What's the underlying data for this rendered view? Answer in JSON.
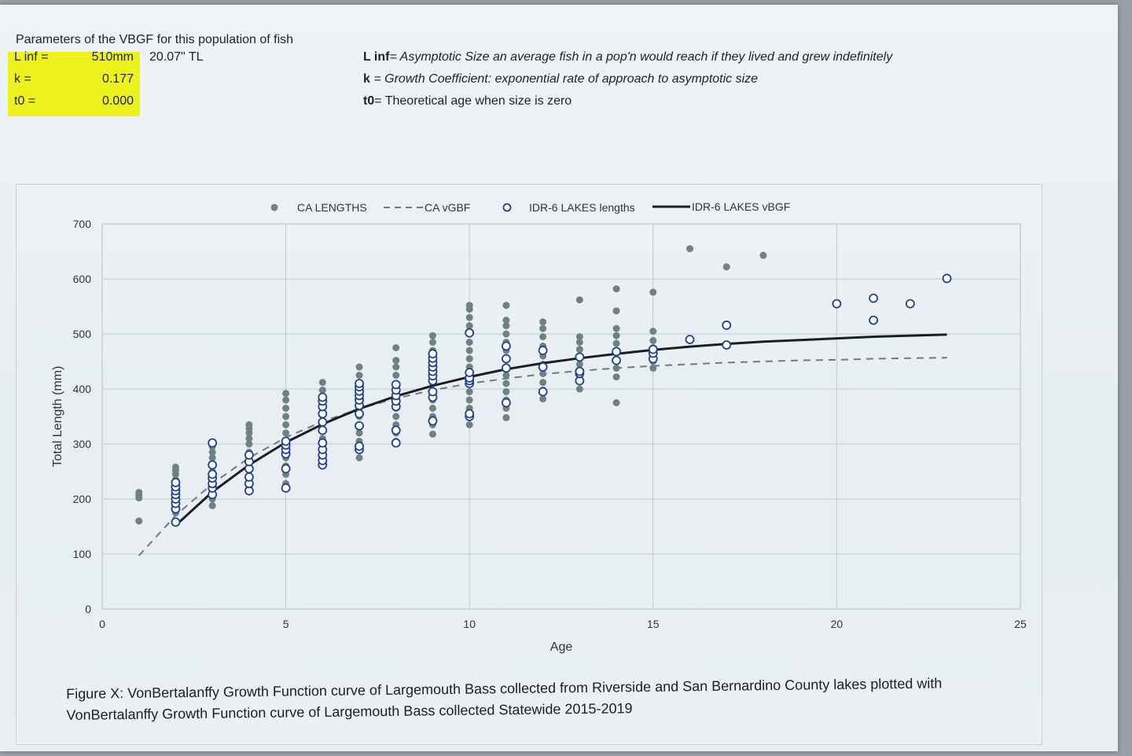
{
  "params": {
    "title": "Parameters of the VBGF for this population of fish",
    "rows": [
      {
        "label": "L inf =",
        "value": "510mm"
      },
      {
        "label": "k =",
        "value": "0.177"
      },
      {
        "label": "t0 =",
        "value": "0.000"
      }
    ],
    "linf_inches": "20.07\" TL"
  },
  "definitions": [
    {
      "term": "L inf",
      "text": "= Asymptotic Size an average fish in a pop'n would reach if they lived and grew indefinitely",
      "italic": true
    },
    {
      "term": "k",
      "text": " = Growth Coefficient: exponential rate of approach to asymptotic size",
      "italic": true
    },
    {
      "term": "t0",
      "text": "= Theoretical age when size is zero",
      "italic": false
    }
  ],
  "caption": {
    "line1": "Figure X: VonBertalanffy Growth Function curve of Largemouth Bass collected from Riverside and San Bernardino County lakes plotted with",
    "line2": "VonBertalanffy Growth Function curve of Largemouth Bass collected Statewide 2015-2019"
  },
  "colors": {
    "ca_points": "#6e8380",
    "idr_points_stroke": "#1f3f8f",
    "ca_curve": "#707b80",
    "idr_curve": "#1a1f26",
    "grid": "#c2c7cb",
    "highlight": "#eef21c"
  },
  "chart_data": {
    "type": "scatter",
    "xlabel": "Age",
    "ylabel": "Total Length (mm)",
    "xlim": [
      0,
      25
    ],
    "ylim": [
      0,
      700
    ],
    "xticks": [
      0,
      5,
      10,
      15,
      20,
      25
    ],
    "yticks": [
      0,
      100,
      200,
      300,
      400,
      500,
      600,
      700
    ],
    "grid": true,
    "legend_position": "top",
    "legend": [
      "CA LENGTHS",
      "CA vGBF",
      "IDR-6 LAKES lengths",
      "IDR-6 LAKES vBGF"
    ],
    "series": [
      {
        "name": "CA LENGTHS",
        "kind": "points",
        "points": [
          [
            1,
            160
          ],
          [
            1,
            202
          ],
          [
            1,
            207
          ],
          [
            1,
            212
          ],
          [
            2,
            175
          ],
          [
            2,
            185
          ],
          [
            2,
            195
          ],
          [
            2,
            205
          ],
          [
            2,
            215
          ],
          [
            2,
            225
          ],
          [
            2,
            235
          ],
          [
            2,
            245
          ],
          [
            2,
            252
          ],
          [
            2,
            258
          ],
          [
            3,
            188
          ],
          [
            3,
            200
          ],
          [
            3,
            212
          ],
          [
            3,
            225
          ],
          [
            3,
            238
          ],
          [
            3,
            250
          ],
          [
            3,
            262
          ],
          [
            3,
            275
          ],
          [
            3,
            285
          ],
          [
            3,
            295
          ],
          [
            3,
            300
          ],
          [
            4,
            222
          ],
          [
            4,
            238
          ],
          [
            4,
            255
          ],
          [
            4,
            270
          ],
          [
            4,
            285
          ],
          [
            4,
            300
          ],
          [
            4,
            310
          ],
          [
            4,
            320
          ],
          [
            4,
            328
          ],
          [
            4,
            335
          ],
          [
            5,
            228
          ],
          [
            5,
            245
          ],
          [
            5,
            260
          ],
          [
            5,
            275
          ],
          [
            5,
            290
          ],
          [
            5,
            305
          ],
          [
            5,
            320
          ],
          [
            5,
            335
          ],
          [
            5,
            350
          ],
          [
            5,
            365
          ],
          [
            5,
            380
          ],
          [
            5,
            392
          ],
          [
            6,
            262
          ],
          [
            6,
            280
          ],
          [
            6,
            295
          ],
          [
            6,
            310
          ],
          [
            6,
            325
          ],
          [
            6,
            340
          ],
          [
            6,
            355
          ],
          [
            6,
            370
          ],
          [
            6,
            385
          ],
          [
            6,
            398
          ],
          [
            6,
            412
          ],
          [
            7,
            275
          ],
          [
            7,
            290
          ],
          [
            7,
            305
          ],
          [
            7,
            320
          ],
          [
            7,
            335
          ],
          [
            7,
            350
          ],
          [
            7,
            365
          ],
          [
            7,
            380
          ],
          [
            7,
            395
          ],
          [
            7,
            410
          ],
          [
            7,
            425
          ],
          [
            7,
            440
          ],
          [
            8,
            305
          ],
          [
            8,
            320
          ],
          [
            8,
            335
          ],
          [
            8,
            350
          ],
          [
            8,
            365
          ],
          [
            8,
            380
          ],
          [
            8,
            395
          ],
          [
            8,
            410
          ],
          [
            8,
            425
          ],
          [
            8,
            440
          ],
          [
            8,
            452
          ],
          [
            8,
            475
          ],
          [
            9,
            318
          ],
          [
            9,
            335
          ],
          [
            9,
            350
          ],
          [
            9,
            365
          ],
          [
            9,
            380
          ],
          [
            9,
            395
          ],
          [
            9,
            410
          ],
          [
            9,
            425
          ],
          [
            9,
            440
          ],
          [
            9,
            455
          ],
          [
            9,
            470
          ],
          [
            9,
            485
          ],
          [
            9,
            497
          ],
          [
            10,
            335
          ],
          [
            10,
            350
          ],
          [
            10,
            365
          ],
          [
            10,
            380
          ],
          [
            10,
            395
          ],
          [
            10,
            410
          ],
          [
            10,
            425
          ],
          [
            10,
            440
          ],
          [
            10,
            455
          ],
          [
            10,
            470
          ],
          [
            10,
            485
          ],
          [
            10,
            500
          ],
          [
            10,
            515
          ],
          [
            10,
            530
          ],
          [
            10,
            545
          ],
          [
            10,
            552
          ],
          [
            11,
            348
          ],
          [
            11,
            365
          ],
          [
            11,
            380
          ],
          [
            11,
            395
          ],
          [
            11,
            410
          ],
          [
            11,
            425
          ],
          [
            11,
            440
          ],
          [
            11,
            455
          ],
          [
            11,
            470
          ],
          [
            11,
            485
          ],
          [
            11,
            500
          ],
          [
            11,
            515
          ],
          [
            11,
            525
          ],
          [
            11,
            552
          ],
          [
            12,
            382
          ],
          [
            12,
            398
          ],
          [
            12,
            412
          ],
          [
            12,
            428
          ],
          [
            12,
            445
          ],
          [
            12,
            460
          ],
          [
            12,
            478
          ],
          [
            12,
            495
          ],
          [
            12,
            510
          ],
          [
            12,
            522
          ],
          [
            13,
            400
          ],
          [
            13,
            415
          ],
          [
            13,
            430
          ],
          [
            13,
            445
          ],
          [
            13,
            460
          ],
          [
            13,
            472
          ],
          [
            13,
            485
          ],
          [
            13,
            495
          ],
          [
            13,
            562
          ],
          [
            14,
            375
          ],
          [
            14,
            422
          ],
          [
            14,
            438
          ],
          [
            14,
            452
          ],
          [
            14,
            468
          ],
          [
            14,
            483
          ],
          [
            14,
            497
          ],
          [
            14,
            510
          ],
          [
            14,
            542
          ],
          [
            14,
            582
          ],
          [
            15,
            438
          ],
          [
            15,
            450
          ],
          [
            15,
            462
          ],
          [
            15,
            475
          ],
          [
            15,
            488
          ],
          [
            15,
            505
          ],
          [
            15,
            576
          ],
          [
            16,
            655
          ],
          [
            17,
            622
          ],
          [
            18,
            643
          ]
        ]
      },
      {
        "name": "CA vGBF",
        "kind": "curve",
        "style": "dashed",
        "points": [
          [
            1,
            97
          ],
          [
            2,
            170
          ],
          [
            3,
            228
          ],
          [
            4,
            275
          ],
          [
            5,
            312
          ],
          [
            6,
            341
          ],
          [
            7,
            364
          ],
          [
            8,
            383
          ],
          [
            9,
            398
          ],
          [
            10,
            410
          ],
          [
            11,
            419
          ],
          [
            12,
            427
          ],
          [
            13,
            433
          ],
          [
            14,
            438
          ],
          [
            15,
            442
          ],
          [
            16,
            445
          ],
          [
            17,
            448
          ],
          [
            18,
            450
          ],
          [
            19,
            452
          ],
          [
            20,
            453
          ],
          [
            21,
            455
          ],
          [
            22,
            456
          ],
          [
            23,
            457
          ]
        ]
      },
      {
        "name": "IDR-6 LAKES lengths",
        "kind": "open-points",
        "points": [
          [
            2,
            158
          ],
          [
            2,
            182
          ],
          [
            2,
            192
          ],
          [
            2,
            200
          ],
          [
            2,
            208
          ],
          [
            2,
            215
          ],
          [
            2,
            222
          ],
          [
            2,
            230
          ],
          [
            3,
            208
          ],
          [
            3,
            220
          ],
          [
            3,
            228
          ],
          [
            3,
            238
          ],
          [
            3,
            245
          ],
          [
            3,
            262
          ],
          [
            3,
            302
          ],
          [
            4,
            215
          ],
          [
            4,
            228
          ],
          [
            4,
            240
          ],
          [
            4,
            255
          ],
          [
            4,
            268
          ],
          [
            4,
            280
          ],
          [
            5,
            220
          ],
          [
            5,
            255
          ],
          [
            5,
            282
          ],
          [
            5,
            290
          ],
          [
            5,
            298
          ],
          [
            5,
            305
          ],
          [
            6,
            262
          ],
          [
            6,
            270
          ],
          [
            6,
            280
          ],
          [
            6,
            290
          ],
          [
            6,
            302
          ],
          [
            6,
            325
          ],
          [
            6,
            340
          ],
          [
            6,
            355
          ],
          [
            6,
            368
          ],
          [
            6,
            378
          ],
          [
            6,
            385
          ],
          [
            7,
            290
          ],
          [
            7,
            296
          ],
          [
            7,
            333
          ],
          [
            7,
            355
          ],
          [
            7,
            370
          ],
          [
            7,
            380
          ],
          [
            7,
            388
          ],
          [
            7,
            396
          ],
          [
            7,
            404
          ],
          [
            7,
            410
          ],
          [
            8,
            302
          ],
          [
            8,
            325
          ],
          [
            8,
            368
          ],
          [
            8,
            378
          ],
          [
            8,
            388
          ],
          [
            8,
            398
          ],
          [
            8,
            408
          ],
          [
            9,
            342
          ],
          [
            9,
            385
          ],
          [
            9,
            395
          ],
          [
            9,
            415
          ],
          [
            9,
            424
          ],
          [
            9,
            432
          ],
          [
            9,
            440
          ],
          [
            9,
            448
          ],
          [
            9,
            456
          ],
          [
            9,
            464
          ],
          [
            10,
            350
          ],
          [
            10,
            355
          ],
          [
            10,
            410
          ],
          [
            10,
            415
          ],
          [
            10,
            420
          ],
          [
            10,
            430
          ],
          [
            10,
            502
          ],
          [
            11,
            375
          ],
          [
            11,
            438
          ],
          [
            11,
            455
          ],
          [
            11,
            478
          ],
          [
            12,
            395
          ],
          [
            12,
            440
          ],
          [
            12,
            470
          ],
          [
            13,
            415
          ],
          [
            13,
            428
          ],
          [
            13,
            432
          ],
          [
            13,
            458
          ],
          [
            14,
            452
          ],
          [
            14,
            468
          ],
          [
            15,
            455
          ],
          [
            15,
            465
          ],
          [
            15,
            472
          ],
          [
            16,
            490
          ],
          [
            17,
            480
          ],
          [
            17,
            516
          ],
          [
            20,
            555
          ],
          [
            21,
            525
          ],
          [
            21,
            565
          ],
          [
            22,
            555
          ],
          [
            23,
            601
          ]
        ]
      },
      {
        "name": "IDR-6 LAKES vBGF",
        "kind": "curve",
        "style": "solid",
        "points": [
          [
            2,
            152
          ],
          [
            3,
            213
          ],
          [
            4,
            262
          ],
          [
            5,
            303
          ],
          [
            6,
            336
          ],
          [
            7,
            364
          ],
          [
            8,
            387
          ],
          [
            9,
            406
          ],
          [
            10,
            422
          ],
          [
            11,
            436
          ],
          [
            12,
            447
          ],
          [
            13,
            456
          ],
          [
            14,
            464
          ],
          [
            15,
            471
          ],
          [
            16,
            477
          ],
          [
            17,
            482
          ],
          [
            18,
            486
          ],
          [
            19,
            489
          ],
          [
            20,
            492
          ],
          [
            21,
            495
          ],
          [
            22,
            497
          ],
          [
            23,
            499
          ]
        ]
      }
    ]
  }
}
